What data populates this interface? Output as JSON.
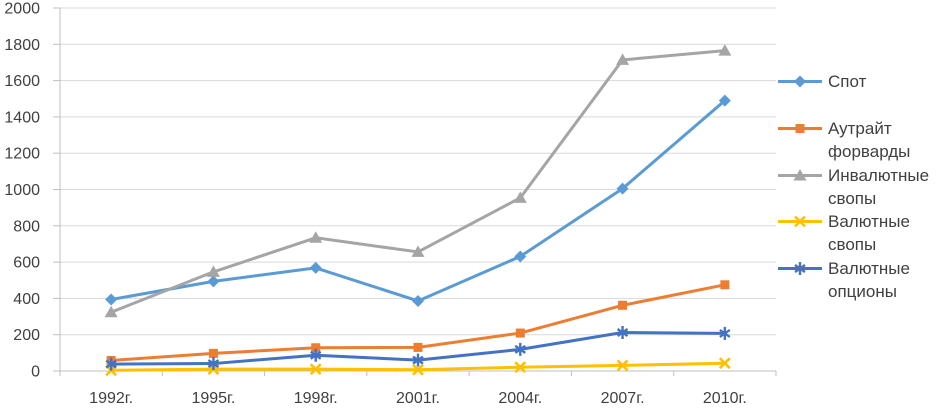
{
  "colors": {
    "gridline": "#D9D9D9",
    "axis": "#BFBFBF",
    "text": "#404040",
    "background": "#FFFFFF"
  },
  "chart_data": {
    "type": "line",
    "title": "",
    "xlabel": "",
    "ylabel": "",
    "grid": true,
    "legend_position": "right",
    "ylim": [
      0,
      2000
    ],
    "ytick_step": 200,
    "ytick_labels": [
      "0",
      "200",
      "400",
      "600",
      "800",
      "1000",
      "1200",
      "1400",
      "1600",
      "1800",
      "2000"
    ],
    "categories": [
      "1992г.",
      "1995г.",
      "1998г.",
      "2001г.",
      "2004г.",
      "2007г.",
      "2010г."
    ],
    "series": [
      {
        "name": "Спот",
        "marker": "diamond",
        "color": "#5B9BD5",
        "values": [
          394,
          494,
          568,
          386,
          631,
          1005,
          1490
        ]
      },
      {
        "name": "Аутрайт форварды",
        "marker": "square",
        "color": "#ED7D31",
        "values": [
          58,
          97,
          128,
          130,
          209,
          362,
          475
        ]
      },
      {
        "name": "Инвалютные свопы",
        "marker": "triangle",
        "color": "#A5A5A5",
        "values": [
          324,
          546,
          734,
          656,
          954,
          1714,
          1765
        ]
      },
      {
        "name": "Валютные свопы",
        "marker": "x",
        "color": "#FFC000",
        "values": [
          4,
          10,
          10,
          7,
          21,
          31,
          43
        ]
      },
      {
        "name": "Валютные опционы",
        "marker": "asterisk",
        "color": "#4472C4",
        "values": [
          38,
          41,
          87,
          60,
          119,
          212,
          207
        ]
      }
    ]
  }
}
